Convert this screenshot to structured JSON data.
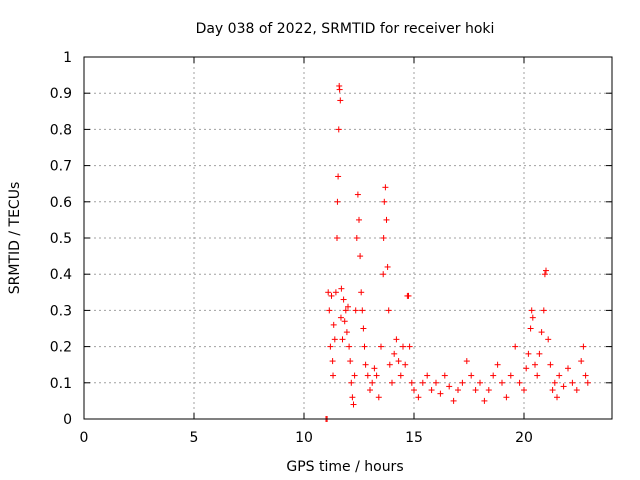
{
  "chart_data": {
    "type": "scatter",
    "title": "Day 038 of 2022, SRMTID for receiver hoki",
    "xlabel": "GPS time / hours",
    "ylabel": "SRMTID / TECUs",
    "xlim": [
      0,
      24
    ],
    "ylim": [
      0,
      1
    ],
    "xticks": [
      0,
      5,
      10,
      15,
      20
    ],
    "yticks": [
      0,
      0.1,
      0.2,
      0.3,
      0.4,
      0.5,
      0.6,
      0.7,
      0.8,
      0.9,
      1
    ],
    "ytick_labels": [
      "0",
      "0.1",
      "0.2",
      "0.3",
      "0.4",
      "0.5",
      "0.6",
      "0.7",
      "0.8",
      "0.9",
      "1"
    ],
    "grid": true,
    "marker": "+",
    "color": "#ff0000",
    "series": [
      {
        "name": "SRMTID",
        "points": [
          [
            11.0,
            0.0
          ],
          [
            11.05,
            0.0
          ],
          [
            11.1,
            0.35
          ],
          [
            11.15,
            0.3
          ],
          [
            11.2,
            0.2
          ],
          [
            11.25,
            0.34
          ],
          [
            11.3,
            0.16
          ],
          [
            11.32,
            0.12
          ],
          [
            11.35,
            0.26
          ],
          [
            11.4,
            0.22
          ],
          [
            11.45,
            0.35
          ],
          [
            11.5,
            0.5
          ],
          [
            11.52,
            0.6
          ],
          [
            11.55,
            0.67
          ],
          [
            11.58,
            0.8
          ],
          [
            11.6,
            0.92
          ],
          [
            11.62,
            0.91
          ],
          [
            11.65,
            0.88
          ],
          [
            11.68,
            0.28
          ],
          [
            11.7,
            0.36
          ],
          [
            11.75,
            0.22
          ],
          [
            11.8,
            0.33
          ],
          [
            11.85,
            0.27
          ],
          [
            11.9,
            0.3
          ],
          [
            11.95,
            0.24
          ],
          [
            12.0,
            0.31
          ],
          [
            12.05,
            0.2
          ],
          [
            12.1,
            0.16
          ],
          [
            12.15,
            0.1
          ],
          [
            12.2,
            0.06
          ],
          [
            12.25,
            0.04
          ],
          [
            12.3,
            0.12
          ],
          [
            12.35,
            0.3
          ],
          [
            12.4,
            0.5
          ],
          [
            12.45,
            0.62
          ],
          [
            12.5,
            0.55
          ],
          [
            12.55,
            0.45
          ],
          [
            12.6,
            0.35
          ],
          [
            12.65,
            0.3
          ],
          [
            12.7,
            0.25
          ],
          [
            12.75,
            0.2
          ],
          [
            12.8,
            0.15
          ],
          [
            12.9,
            0.12
          ],
          [
            13.0,
            0.08
          ],
          [
            13.1,
            0.1
          ],
          [
            13.2,
            0.14
          ],
          [
            13.3,
            0.12
          ],
          [
            13.4,
            0.06
          ],
          [
            13.5,
            0.2
          ],
          [
            13.6,
            0.4
          ],
          [
            13.62,
            0.5
          ],
          [
            13.65,
            0.6
          ],
          [
            13.7,
            0.64
          ],
          [
            13.75,
            0.55
          ],
          [
            13.8,
            0.42
          ],
          [
            13.85,
            0.3
          ],
          [
            13.9,
            0.15
          ],
          [
            14.0,
            0.1
          ],
          [
            14.1,
            0.18
          ],
          [
            14.2,
            0.22
          ],
          [
            14.3,
            0.16
          ],
          [
            14.4,
            0.12
          ],
          [
            14.5,
            0.2
          ],
          [
            14.6,
            0.15
          ],
          [
            14.7,
            0.34
          ],
          [
            14.75,
            0.34
          ],
          [
            14.8,
            0.2
          ],
          [
            14.9,
            0.1
          ],
          [
            15.0,
            0.08
          ],
          [
            15.2,
            0.06
          ],
          [
            15.4,
            0.1
          ],
          [
            15.6,
            0.12
          ],
          [
            15.8,
            0.08
          ],
          [
            16.0,
            0.1
          ],
          [
            16.2,
            0.07
          ],
          [
            16.4,
            0.12
          ],
          [
            16.6,
            0.09
          ],
          [
            16.8,
            0.05
          ],
          [
            17.0,
            0.08
          ],
          [
            17.2,
            0.1
          ],
          [
            17.4,
            0.16
          ],
          [
            17.6,
            0.12
          ],
          [
            17.8,
            0.08
          ],
          [
            18.0,
            0.1
          ],
          [
            18.2,
            0.05
          ],
          [
            18.4,
            0.08
          ],
          [
            18.6,
            0.12
          ],
          [
            18.8,
            0.15
          ],
          [
            19.0,
            0.1
          ],
          [
            19.2,
            0.06
          ],
          [
            19.4,
            0.12
          ],
          [
            19.6,
            0.2
          ],
          [
            19.8,
            0.1
          ],
          [
            20.0,
            0.08
          ],
          [
            20.1,
            0.14
          ],
          [
            20.2,
            0.18
          ],
          [
            20.3,
            0.25
          ],
          [
            20.35,
            0.3
          ],
          [
            20.4,
            0.28
          ],
          [
            20.5,
            0.15
          ],
          [
            20.6,
            0.12
          ],
          [
            20.7,
            0.18
          ],
          [
            20.8,
            0.24
          ],
          [
            20.9,
            0.3
          ],
          [
            20.95,
            0.4
          ],
          [
            21.0,
            0.41
          ],
          [
            21.1,
            0.22
          ],
          [
            21.2,
            0.15
          ],
          [
            21.3,
            0.08
          ],
          [
            21.4,
            0.1
          ],
          [
            21.5,
            0.06
          ],
          [
            21.6,
            0.12
          ],
          [
            21.8,
            0.09
          ],
          [
            22.0,
            0.14
          ],
          [
            22.2,
            0.1
          ],
          [
            22.4,
            0.08
          ],
          [
            22.6,
            0.16
          ],
          [
            22.7,
            0.2
          ],
          [
            22.8,
            0.12
          ],
          [
            22.9,
            0.1
          ]
        ]
      }
    ]
  }
}
